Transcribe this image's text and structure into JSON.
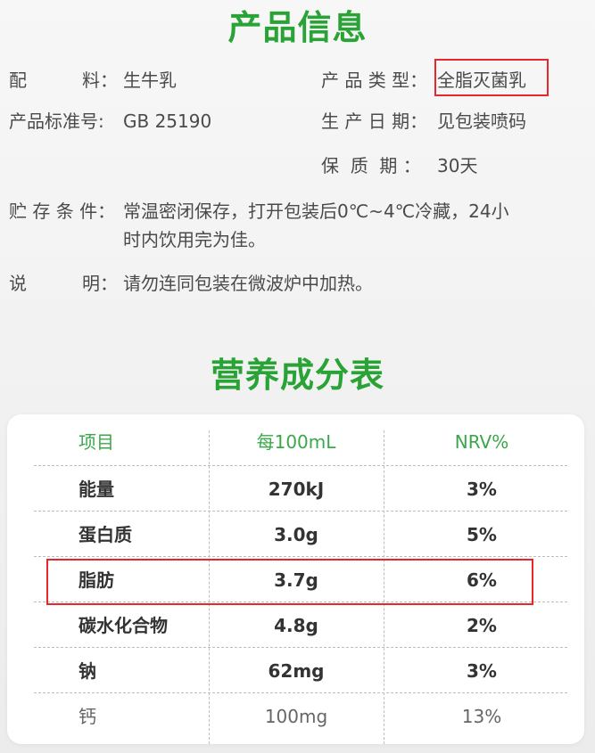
{
  "product_info": {
    "title": "产品信息",
    "ingredients": {
      "label_a": "配",
      "label_b": "料：",
      "value": "生牛乳"
    },
    "product_type": {
      "label": "产 品 类 型：",
      "value": "全脂灭菌乳"
    },
    "standard": {
      "label": "产品标准号:",
      "value": "GB 25190"
    },
    "production_date": {
      "label": "生 产 日 期：",
      "value": "见包装喷码"
    },
    "shelf_life": {
      "label": "保  质  期 ：",
      "value": "30天"
    },
    "storage": {
      "label": "贮 存 条 件：",
      "line1": "常温密闭保存，打开包装后0℃~4℃冷藏，24小",
      "line2": "时内饮用完为佳。"
    },
    "note": {
      "label_a": "说",
      "label_b": "明：",
      "value": "请勿连同包装在微波炉中加热。"
    }
  },
  "nutrition": {
    "title": "营养成分表",
    "headers": [
      "项目",
      "每100mL",
      "NRV%"
    ],
    "rows": [
      {
        "item": "能量",
        "per100": "270kJ",
        "nrv": "3%"
      },
      {
        "item": "蛋白质",
        "per100": "3.0g",
        "nrv": "5%"
      },
      {
        "item": "脂肪",
        "per100": "3.7g",
        "nrv": "6%"
      },
      {
        "item": "碳水化合物",
        "per100": "4.8g",
        "nrv": "2%"
      },
      {
        "item": "钠",
        "per100": "62mg",
        "nrv": "3%"
      },
      {
        "item": "钙",
        "per100": "100mg",
        "nrv": "13%"
      }
    ]
  },
  "colors": {
    "accent_green": "#2aa336",
    "highlight_red": "#e8262b"
  }
}
